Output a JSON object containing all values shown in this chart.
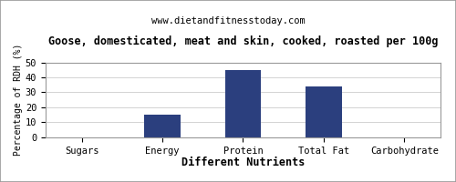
{
  "title": "Goose, domesticated, meat and skin, cooked, roasted per 100g",
  "subtitle": "www.dietandfitnesstoday.com",
  "xlabel": "Different Nutrients",
  "ylabel": "Percentage of RDH (%)",
  "categories": [
    "Sugars",
    "Energy",
    "Protein",
    "Total Fat",
    "Carbohydrate"
  ],
  "values": [
    0,
    15,
    45,
    34,
    0
  ],
  "bar_color": "#2b3f7e",
  "ylim": [
    0,
    50
  ],
  "yticks": [
    0,
    10,
    20,
    30,
    40,
    50
  ],
  "background_color": "#ffffff",
  "title_fontsize": 8.5,
  "subtitle_fontsize": 7.5,
  "xlabel_fontsize": 8.5,
  "ylabel_fontsize": 7,
  "tick_fontsize": 7.5,
  "border_color": "#999999"
}
